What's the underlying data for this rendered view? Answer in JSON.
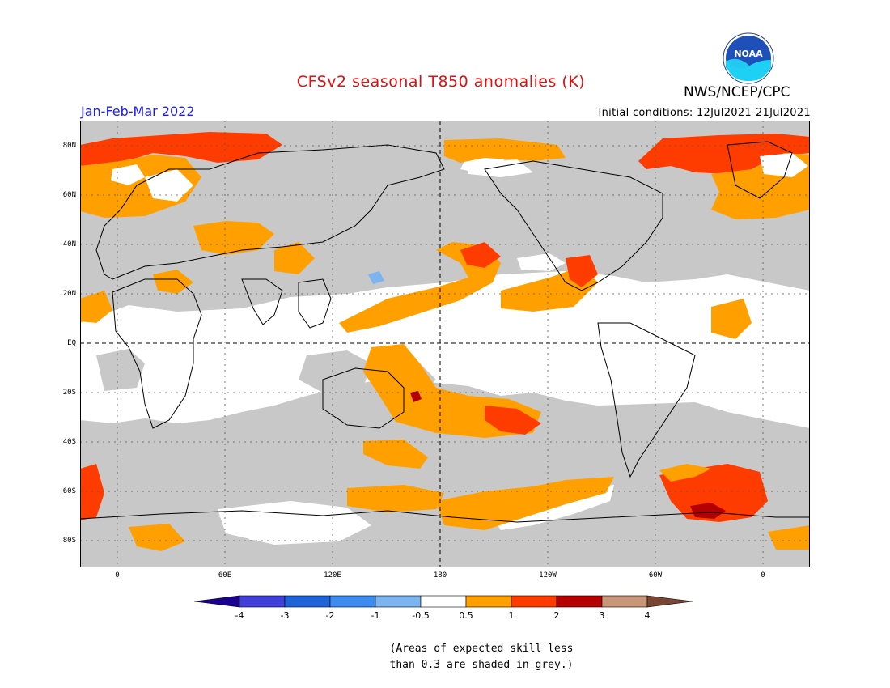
{
  "title": "CFSv2 seasonal T850 anomalies (K)",
  "organization": "NWS/NCEP/CPC",
  "logo_text": "NOAA",
  "period": "Jan-Feb-Mar 2022",
  "initial_conditions": "Initial conditions: 12Jul2021-21Jul2021",
  "map": {
    "lat_labels": [
      "80N",
      "60N",
      "40N",
      "20N",
      "EQ",
      "20S",
      "40S",
      "60S",
      "80S"
    ],
    "lon_labels": [
      "0",
      "60E",
      "120E",
      "180",
      "120W",
      "60W",
      "0"
    ]
  },
  "colorbar": {
    "unit": "K",
    "ticks": [
      "-4",
      "-3",
      "-2",
      "-1",
      "-0.5",
      "0.5",
      "1",
      "2",
      "3",
      "4"
    ],
    "colors": [
      "#1a0090",
      "#4040d8",
      "#1e64d8",
      "#3c8cf0",
      "#7cb4f0",
      "#ffffff",
      "#ffa000",
      "#ff3c00",
      "#b40000",
      "#c89678",
      "#784632"
    ]
  },
  "note_lines": [
    "(Areas of expected skill less",
    "than 0.3 are shaded in grey.)"
  ],
  "shading": {
    "grey": "#c8c8c8",
    "neutral": "#ffffff",
    "warm1": "#ffa000",
    "warm2": "#ff3c00",
    "warm3": "#b40000",
    "cool": "#7cb4f0"
  }
}
